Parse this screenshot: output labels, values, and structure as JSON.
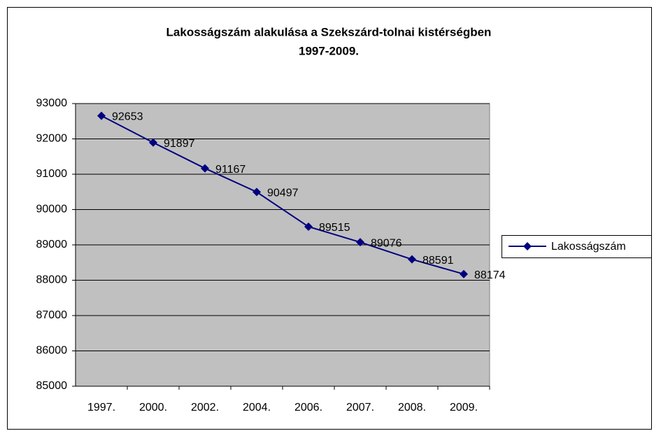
{
  "chart_data": {
    "type": "line",
    "title": [
      "Lakosságszám alakulása a Szekszárd-tolnai kistérségben",
      "1997-2009."
    ],
    "categories": [
      "1997.",
      "2000.",
      "2002.",
      "2004.",
      "2006.",
      "2007.",
      "2008.",
      "2009."
    ],
    "series": [
      {
        "name": "Lakosságszám",
        "color": "#000080",
        "values": [
          92653,
          91897,
          91167,
          90497,
          89515,
          89076,
          88591,
          88174
        ]
      }
    ],
    "ylim": [
      85000,
      93000
    ],
    "yticks": [
      85000,
      86000,
      87000,
      88000,
      89000,
      90000,
      91000,
      92000,
      93000
    ],
    "grid": true,
    "legend": "right",
    "plot_background": "#c0c0c0"
  }
}
